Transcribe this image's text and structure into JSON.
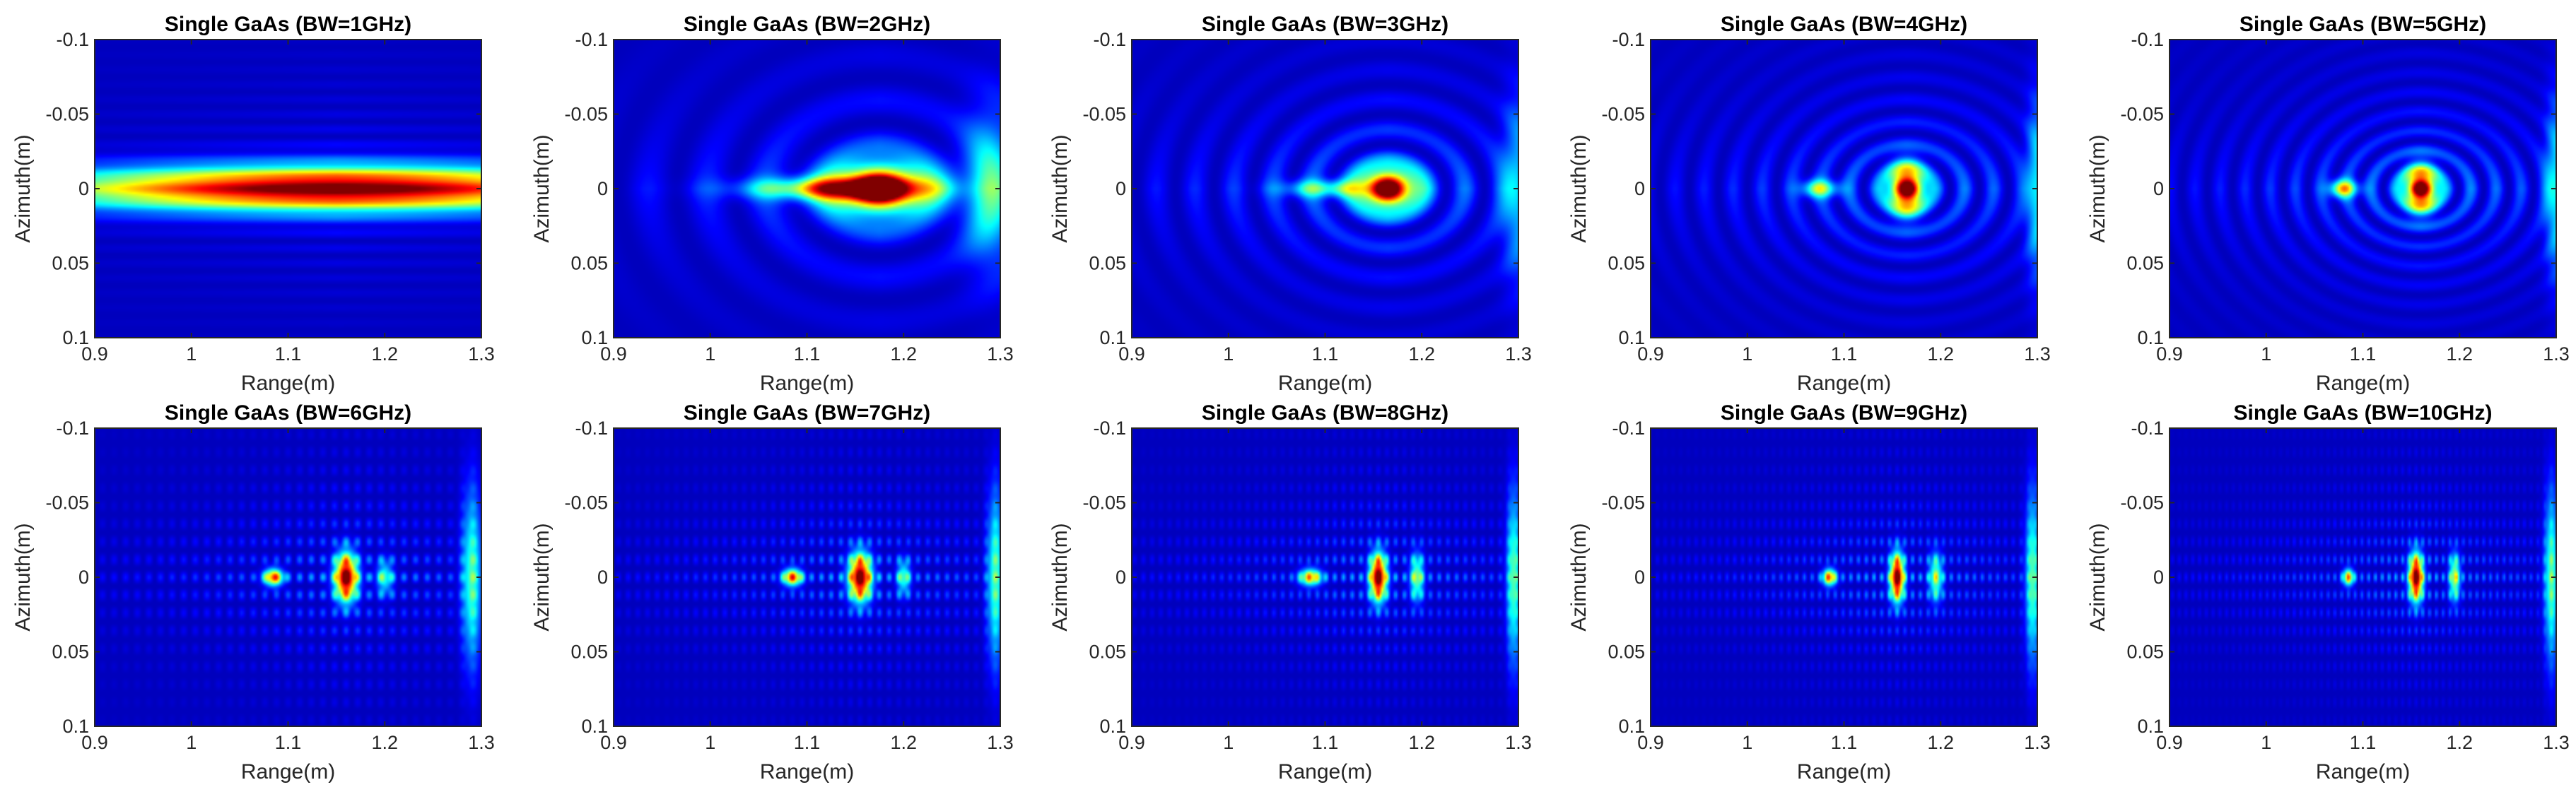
{
  "figure": {
    "layout": "2 rows x 5 columns of heatmap panels",
    "colormap": "jet",
    "colors": {
      "background": "#00007f",
      "axis": "#262626",
      "text": "#000000"
    }
  },
  "chart_data": [
    {
      "type": "heatmap",
      "title": "Single GaAs (BW=1GHz)",
      "xlabel": "Range(m)",
      "ylabel": "Azimuth(m)",
      "xlim": [
        0.9,
        1.3
      ],
      "ylim": [
        -0.1,
        0.1
      ],
      "xticks": [
        "0.9",
        "1",
        "1.1",
        "1.2",
        "1.3"
      ],
      "yticks": [
        "-0.1",
        "-0.05",
        "0",
        "0.05",
        "0.1"
      ],
      "peaks": [
        {
          "x": 1.15,
          "y": 0,
          "intensity": 1.0,
          "range_width": 0.21,
          "azimuth_width": 0.01
        }
      ],
      "fringes": {
        "mode": "smooth",
        "spacing": 0.01,
        "strength": 0.2
      },
      "edge_glow": []
    },
    {
      "type": "heatmap",
      "title": "Single GaAs (BW=2GHz)",
      "xlabel": "Range(m)",
      "ylabel": "Azimuth(m)",
      "xlim": [
        0.9,
        1.3
      ],
      "ylim": [
        -0.1,
        0.1
      ],
      "xticks": [
        "0.9",
        "1",
        "1.1",
        "1.2",
        "1.3"
      ],
      "yticks": [
        "-0.1",
        "-0.05",
        "0",
        "0.05",
        "0.1"
      ],
      "peaks": [
        {
          "x": 1.175,
          "y": 0,
          "intensity": 1.0,
          "range_width": 0.035,
          "azimuth_width": 0.011
        },
        {
          "x": 1.13,
          "y": 0,
          "intensity": 0.58,
          "range_width": 0.06,
          "azimuth_width": 0.005
        }
      ],
      "fringes": {
        "mode": "rings",
        "spacing": 0.03,
        "strength": 0.3
      },
      "edge_glow": [
        {
          "x": 1.29,
          "y": 0,
          "intensity": 0.32,
          "range_width": 0.02,
          "azimuth_width": 0.035
        }
      ]
    },
    {
      "type": "heatmap",
      "title": "Single GaAs (BW=3GHz)",
      "xlabel": "Range(m)",
      "ylabel": "Azimuth(m)",
      "xlim": [
        0.9,
        1.3
      ],
      "ylim": [
        -0.1,
        0.1
      ],
      "xticks": [
        "0.9",
        "1",
        "1.1",
        "1.2",
        "1.3"
      ],
      "yticks": [
        "-0.1",
        "-0.05",
        "0",
        "0.05",
        "0.1"
      ],
      "peaks": [
        {
          "x": 1.165,
          "y": 0,
          "intensity": 1.0,
          "range_width": 0.02,
          "azimuth_width": 0.009
        },
        {
          "x": 1.1,
          "y": 0,
          "intensity": 0.35,
          "range_width": 0.03,
          "azimuth_width": 0.004
        }
      ],
      "fringes": {
        "mode": "rings",
        "spacing": 0.02,
        "strength": 0.3
      },
      "edge_glow": [
        {
          "x": 1.3,
          "y": 0,
          "intensity": 0.28,
          "range_width": 0.012,
          "azimuth_width": 0.04
        }
      ]
    },
    {
      "type": "heatmap",
      "title": "Single GaAs (BW=4GHz)",
      "xlabel": "Range(m)",
      "ylabel": "Azimuth(m)",
      "xlim": [
        0.9,
        1.3
      ],
      "ylim": [
        -0.1,
        0.1
      ],
      "xticks": [
        "0.9",
        "1",
        "1.1",
        "1.2",
        "1.3"
      ],
      "yticks": [
        "-0.1",
        "-0.05",
        "0",
        "0.05",
        "0.1"
      ],
      "peaks": [
        {
          "x": 1.165,
          "y": 0,
          "intensity": 1.0,
          "range_width": 0.012,
          "azimuth_width": 0.011
        },
        {
          "x": 1.075,
          "y": 0,
          "intensity": 0.45,
          "range_width": 0.013,
          "azimuth_width": 0.004
        }
      ],
      "fringes": {
        "mode": "rings",
        "spacing": 0.015,
        "strength": 0.28
      },
      "edge_glow": [
        {
          "x": 1.3,
          "y": 0,
          "intensity": 0.32,
          "range_width": 0.008,
          "azimuth_width": 0.04
        }
      ]
    },
    {
      "type": "heatmap",
      "title": "Single GaAs (BW=5GHz)",
      "xlabel": "Range(m)",
      "ylabel": "Azimuth(m)",
      "xlim": [
        0.9,
        1.3
      ],
      "ylim": [
        -0.1,
        0.1
      ],
      "xticks": [
        "0.9",
        "1",
        "1.1",
        "1.2",
        "1.3"
      ],
      "yticks": [
        "-0.1",
        "-0.05",
        "0",
        "0.05",
        "0.1"
      ],
      "peaks": [
        {
          "x": 1.16,
          "y": 0,
          "intensity": 1.0,
          "range_width": 0.011,
          "azimuth_width": 0.01
        },
        {
          "x": 1.08,
          "y": 0,
          "intensity": 0.58,
          "range_width": 0.01,
          "azimuth_width": 0.004
        }
      ],
      "fringes": {
        "mode": "rings",
        "spacing": 0.013,
        "strength": 0.28
      },
      "edge_glow": [
        {
          "x": 1.3,
          "y": 0,
          "intensity": 0.32,
          "range_width": 0.008,
          "azimuth_width": 0.04
        }
      ]
    },
    {
      "type": "heatmap",
      "title": "Single GaAs (BW=6GHz)",
      "xlabel": "Range(m)",
      "ylabel": "Azimuth(m)",
      "xlim": [
        0.9,
        1.3
      ],
      "ylim": [
        -0.1,
        0.1
      ],
      "xticks": [
        "0.9",
        "1",
        "1.1",
        "1.2",
        "1.3"
      ],
      "yticks": [
        "-0.1",
        "-0.05",
        "0",
        "0.05",
        "0.1"
      ],
      "peaks": [
        {
          "x": 1.16,
          "y": 0,
          "intensity": 1.0,
          "range_width": 0.008,
          "azimuth_width": 0.011
        },
        {
          "x": 1.085,
          "y": 0,
          "intensity": 0.72,
          "range_width": 0.007,
          "azimuth_width": 0.004
        },
        {
          "x": 1.2,
          "y": 0,
          "intensity": 0.35,
          "range_width": 0.006,
          "azimuth_width": 0.008
        }
      ],
      "fringes": {
        "mode": "columns",
        "spacing": 0.012,
        "strength": 0.3
      },
      "edge_glow": [
        {
          "x": 1.29,
          "y": 0,
          "intensity": 0.4,
          "range_width": 0.007,
          "azimuth_width": 0.04
        }
      ]
    },
    {
      "type": "heatmap",
      "title": "Single GaAs (BW=7GHz)",
      "xlabel": "Range(m)",
      "ylabel": "Azimuth(m)",
      "xlim": [
        0.9,
        1.3
      ],
      "ylim": [
        -0.1,
        0.1
      ],
      "xticks": [
        "0.9",
        "1",
        "1.1",
        "1.2",
        "1.3"
      ],
      "yticks": [
        "-0.1",
        "-0.05",
        "0",
        "0.05",
        "0.1"
      ],
      "peaks": [
        {
          "x": 1.155,
          "y": 0,
          "intensity": 1.0,
          "range_width": 0.008,
          "azimuth_width": 0.011
        },
        {
          "x": 1.085,
          "y": 0,
          "intensity": 0.72,
          "range_width": 0.007,
          "azimuth_width": 0.004
        },
        {
          "x": 1.2,
          "y": 0,
          "intensity": 0.38,
          "range_width": 0.005,
          "azimuth_width": 0.008
        }
      ],
      "fringes": {
        "mode": "columns",
        "spacing": 0.01,
        "strength": 0.3
      },
      "edge_glow": [
        {
          "x": 1.295,
          "y": 0,
          "intensity": 0.4,
          "range_width": 0.006,
          "azimuth_width": 0.04
        }
      ]
    },
    {
      "type": "heatmap",
      "title": "Single GaAs (BW=8GHz)",
      "xlabel": "Range(m)",
      "ylabel": "Azimuth(m)",
      "xlim": [
        0.9,
        1.3
      ],
      "ylim": [
        -0.1,
        0.1
      ],
      "xticks": [
        "0.9",
        "1",
        "1.1",
        "1.2",
        "1.3"
      ],
      "yticks": [
        "-0.1",
        "-0.05",
        "0",
        "0.05",
        "0.1"
      ],
      "peaks": [
        {
          "x": 1.155,
          "y": 0,
          "intensity": 1.0,
          "range_width": 0.006,
          "azimuth_width": 0.011
        },
        {
          "x": 1.085,
          "y": 0,
          "intensity": 0.62,
          "range_width": 0.008,
          "azimuth_width": 0.004
        },
        {
          "x": 1.195,
          "y": 0,
          "intensity": 0.45,
          "range_width": 0.005,
          "azimuth_width": 0.011
        }
      ],
      "fringes": {
        "mode": "columns",
        "spacing": 0.009,
        "strength": 0.3
      },
      "edge_glow": [
        {
          "x": 1.295,
          "y": 0,
          "intensity": 0.42,
          "range_width": 0.005,
          "azimuth_width": 0.04
        }
      ]
    },
    {
      "type": "heatmap",
      "title": "Single GaAs (BW=9GHz)",
      "xlabel": "Range(m)",
      "ylabel": "Azimuth(m)",
      "xlim": [
        0.9,
        1.3
      ],
      "ylim": [
        -0.1,
        0.1
      ],
      "xticks": [
        "0.9",
        "1",
        "1.1",
        "1.2",
        "1.3"
      ],
      "yticks": [
        "-0.1",
        "-0.05",
        "0",
        "0.05",
        "0.1"
      ],
      "peaks": [
        {
          "x": 1.155,
          "y": 0,
          "intensity": 1.0,
          "range_width": 0.005,
          "azimuth_width": 0.011
        },
        {
          "x": 1.085,
          "y": 0,
          "intensity": 0.68,
          "range_width": 0.005,
          "azimuth_width": 0.004
        },
        {
          "x": 1.195,
          "y": 0,
          "intensity": 0.45,
          "range_width": 0.005,
          "azimuth_width": 0.011
        }
      ],
      "fringes": {
        "mode": "columns",
        "spacing": 0.008,
        "strength": 0.3
      },
      "edge_glow": [
        {
          "x": 1.295,
          "y": 0,
          "intensity": 0.42,
          "range_width": 0.005,
          "azimuth_width": 0.04
        }
      ]
    },
    {
      "type": "heatmap",
      "title": "Single GaAs (BW=10GHz)",
      "xlabel": "Range(m)",
      "ylabel": "Azimuth(m)",
      "xlim": [
        0.9,
        1.3
      ],
      "ylim": [
        -0.1,
        0.1
      ],
      "xticks": [
        "0.9",
        "1",
        "1.1",
        "1.2",
        "1.3"
      ],
      "yticks": [
        "-0.1",
        "-0.05",
        "0",
        "0.05",
        "0.1"
      ],
      "peaks": [
        {
          "x": 1.155,
          "y": 0,
          "intensity": 1.0,
          "range_width": 0.005,
          "azimuth_width": 0.011
        },
        {
          "x": 1.085,
          "y": 0,
          "intensity": 0.62,
          "range_width": 0.004,
          "azimuth_width": 0.004
        },
        {
          "x": 1.195,
          "y": 0,
          "intensity": 0.5,
          "range_width": 0.004,
          "azimuth_width": 0.011
        }
      ],
      "fringes": {
        "mode": "columns",
        "spacing": 0.007,
        "strength": 0.3
      },
      "edge_glow": [
        {
          "x": 1.295,
          "y": 0,
          "intensity": 0.42,
          "range_width": 0.005,
          "azimuth_width": 0.04
        }
      ]
    }
  ]
}
